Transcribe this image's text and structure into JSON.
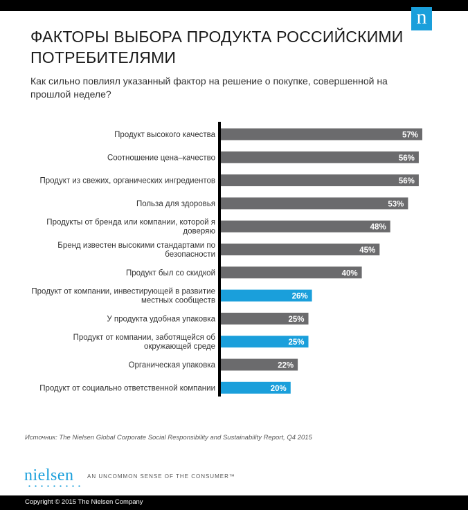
{
  "header": {
    "logo_letter": "n"
  },
  "title": "ФАКТОРЫ ВЫБОРА ПРОДУКТА РОССИЙСКИМИ ПОТРЕБИТЕЛЯМИ",
  "subtitle": "Как сильно повлиял указанный фактор на решение о покупке, совершенной на прошлой неделе?",
  "colors": {
    "gray_bar": "#6b6b6d",
    "blue_bar": "#1a9fdb",
    "axis": "#000000",
    "label": "#333333"
  },
  "chart_data": {
    "type": "bar",
    "orientation": "horizontal",
    "categories": [
      [
        "Продукт высокого качества"
      ],
      [
        "Соотношение цена–качество"
      ],
      [
        "Продукт из свежих, органических ингредиентов"
      ],
      [
        "Польза для здоровья"
      ],
      [
        "Продукты от бренда или компании, которой я",
        "доверяю"
      ],
      [
        "Бренд известен высокими стандартами по",
        "безопасности"
      ],
      [
        "Продукт был со скидкой"
      ],
      [
        "Продукт от компании, инвестирующей в развитие",
        "местных сообществ"
      ],
      [
        "У продукта удобная упаковка"
      ],
      [
        "Продукт от компании, заботящейся об",
        "окружающей среде"
      ],
      [
        "Органическая упаковка"
      ],
      [
        "Продукт от социально ответственной компании"
      ]
    ],
    "values": [
      57,
      56,
      56,
      53,
      48,
      45,
      40,
      26,
      25,
      25,
      22,
      20
    ],
    "value_labels": [
      "57%",
      "56%",
      "56%",
      "53%",
      "48%",
      "45%",
      "40%",
      "26%",
      "25%",
      "25%",
      "22%",
      "20%"
    ],
    "highlighted": [
      false,
      false,
      false,
      false,
      false,
      false,
      false,
      true,
      false,
      true,
      false,
      true
    ],
    "xlim": [
      0,
      60
    ]
  },
  "source": "Источник: The Nielsen Global Corporate Social Responsibility and Sustainability Report, Q4 2015",
  "brand": {
    "name": "nielsen",
    "tagline": "AN UNCOMMON SENSE OF THE CONSUMER™"
  },
  "footer": {
    "copyright": "Copyright © 2015 The Nielsen Company"
  }
}
